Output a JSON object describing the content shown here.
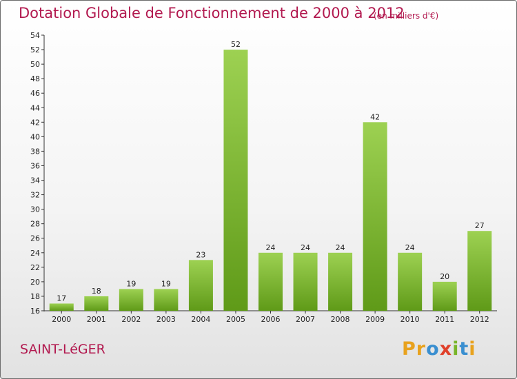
{
  "header": {
    "title": "Dotation Globale de Fonctionnement de 2000 à 2012",
    "subtitle": "(en milliers d'€)"
  },
  "footer": {
    "commune": "SAINT-LéGER",
    "logo_text": "Proxiti",
    "logo_colors": [
      "#e8a21e",
      "#e8a21e",
      "#3a8fd0",
      "#e0402a",
      "#79b52a",
      "#3a8fd0",
      "#e8a21e"
    ]
  },
  "colors": {
    "bar_light": "#9dd152",
    "bar_dark": "#5f9a18",
    "axis": "#333333",
    "text": "#222222",
    "accent": "#b2194f"
  },
  "chart_data": {
    "type": "bar",
    "categories": [
      "2000",
      "2001",
      "2002",
      "2003",
      "2004",
      "2005",
      "2006",
      "2007",
      "2008",
      "2009",
      "2010",
      "2011",
      "2012"
    ],
    "values": [
      17,
      18,
      19,
      19,
      23,
      52,
      24,
      24,
      24,
      42,
      24,
      20,
      27
    ],
    "title": "Dotation Globale de Fonctionnement de 2000 à 2012",
    "subtitle": "(en milliers d'€)",
    "ylim": [
      16,
      54
    ],
    "yticks": [
      16,
      18,
      20,
      22,
      24,
      26,
      28,
      30,
      32,
      34,
      36,
      38,
      40,
      42,
      44,
      46,
      48,
      50,
      52,
      54
    ],
    "grid": false,
    "legend": "none"
  }
}
